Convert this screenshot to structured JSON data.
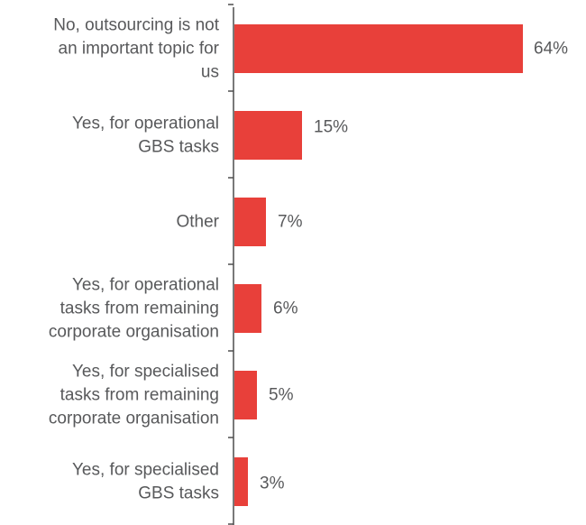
{
  "chart_data": {
    "type": "bar",
    "orientation": "horizontal",
    "title": "",
    "xlabel": "",
    "ylabel": "",
    "xlim": [
      0,
      64
    ],
    "grid": false,
    "legend": "none",
    "bar_color": "#e8403a",
    "categories": [
      [
        "No, outsourcing is not",
        "an important topic for",
        "us"
      ],
      [
        "Yes, for operational",
        "GBS tasks"
      ],
      [
        "Other"
      ],
      [
        "Yes, for operational",
        "tasks from remaining",
        "corporate organisation"
      ],
      [
        "Yes, for specialised",
        "tasks from remaining",
        "corporate organisation"
      ],
      [
        "Yes, for specialised",
        "GBS tasks"
      ]
    ],
    "values": [
      64,
      15,
      7,
      6,
      5,
      3
    ],
    "value_labels": [
      "64%",
      "15%",
      "7%",
      "6%",
      "5%",
      "3%"
    ]
  }
}
